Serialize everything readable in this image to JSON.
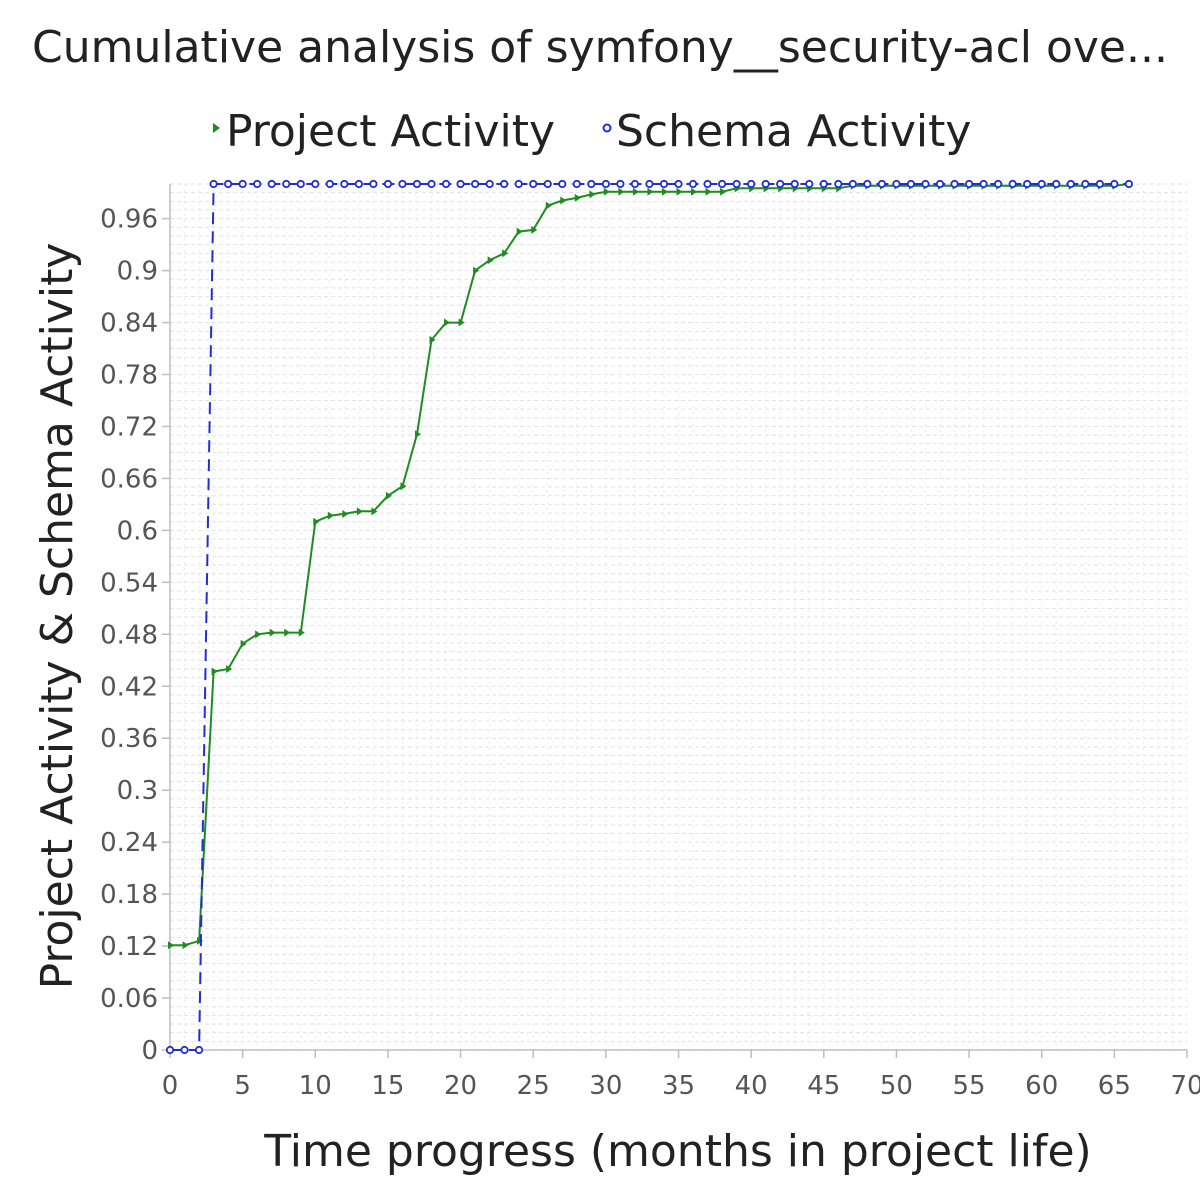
{
  "chart_data": {
    "type": "line",
    "title": "Cumulative analysis of symfony__security-acl ove...",
    "xlabel": "Time progress (months in project life)",
    "ylabel": "Project Activity & Schema Activity",
    "xlim": [
      0,
      70
    ],
    "ylim": [
      0,
      1.0
    ],
    "x_ticks": [
      "0",
      "5",
      "10",
      "15",
      "20",
      "25",
      "30",
      "35",
      "40",
      "45",
      "50",
      "55",
      "60",
      "65",
      "70"
    ],
    "y_ticks": [
      "0",
      "0.06",
      "0.12",
      "0.18",
      "0.24",
      "0.3",
      "0.36",
      "0.42",
      "0.48",
      "0.54",
      "0.6",
      "0.66",
      "0.72",
      "0.78",
      "0.84",
      "0.9",
      "0.96"
    ],
    "grid": true,
    "legend": "top",
    "series": [
      {
        "name": "Project Activity",
        "color": "#1e8c1e",
        "marker": "triangle-right",
        "line": "solid",
        "points": [
          [
            0,
            0.121
          ],
          [
            1,
            0.121
          ],
          [
            2,
            0.126
          ],
          [
            3,
            0.437
          ],
          [
            4,
            0.44
          ],
          [
            5,
            0.469
          ],
          [
            6,
            0.48
          ],
          [
            7,
            0.482
          ],
          [
            8,
            0.482
          ],
          [
            9,
            0.482
          ],
          [
            10,
            0.61
          ],
          [
            11,
            0.617
          ],
          [
            12,
            0.619
          ],
          [
            13,
            0.622
          ],
          [
            14,
            0.622
          ],
          [
            15,
            0.64
          ],
          [
            16,
            0.651
          ],
          [
            17,
            0.711
          ],
          [
            18,
            0.82
          ],
          [
            19,
            0.84
          ],
          [
            20,
            0.84
          ],
          [
            21,
            0.9
          ],
          [
            22,
            0.912
          ],
          [
            23,
            0.92
          ],
          [
            24,
            0.945
          ],
          [
            25,
            0.947
          ],
          [
            26,
            0.975
          ],
          [
            27,
            0.981
          ],
          [
            28,
            0.984
          ],
          [
            29,
            0.988
          ],
          [
            30,
            0.991
          ],
          [
            31,
            0.991
          ],
          [
            32,
            0.991
          ],
          [
            33,
            0.991
          ],
          [
            34,
            0.991
          ],
          [
            35,
            0.991
          ],
          [
            36,
            0.991
          ],
          [
            37,
            0.991
          ],
          [
            38,
            0.991
          ],
          [
            39,
            0.995
          ],
          [
            40,
            0.995
          ],
          [
            41,
            0.995
          ],
          [
            42,
            0.995
          ],
          [
            43,
            0.995
          ],
          [
            44,
            0.995
          ],
          [
            45,
            0.995
          ],
          [
            46,
            0.995
          ],
          [
            47,
            0.998
          ],
          [
            48,
            0.998
          ],
          [
            49,
            0.998
          ],
          [
            50,
            0.998
          ],
          [
            51,
            0.998
          ],
          [
            52,
            0.998
          ],
          [
            53,
            0.998
          ],
          [
            54,
            0.998
          ],
          [
            55,
            0.998
          ],
          [
            56,
            0.998
          ],
          [
            57,
            0.998
          ],
          [
            58,
            0.998
          ],
          [
            59,
            0.998
          ],
          [
            60,
            0.998
          ],
          [
            61,
            0.998
          ],
          [
            62,
            0.998
          ],
          [
            63,
            0.998
          ],
          [
            64,
            0.998
          ],
          [
            65,
            0.998
          ],
          [
            66,
            1.0
          ]
        ]
      },
      {
        "name": "Schema Activity",
        "color": "#1f2fd6",
        "marker": "circle",
        "line": "dashed",
        "points": [
          [
            0,
            0
          ],
          [
            1,
            0
          ],
          [
            2,
            0
          ],
          [
            3,
            1
          ],
          [
            4,
            1
          ],
          [
            5,
            1
          ],
          [
            6,
            1
          ],
          [
            7,
            1
          ],
          [
            8,
            1
          ],
          [
            9,
            1
          ],
          [
            10,
            1
          ],
          [
            11,
            1
          ],
          [
            12,
            1
          ],
          [
            13,
            1
          ],
          [
            14,
            1
          ],
          [
            15,
            1
          ],
          [
            16,
            1
          ],
          [
            17,
            1
          ],
          [
            18,
            1
          ],
          [
            19,
            1
          ],
          [
            20,
            1
          ],
          [
            21,
            1
          ],
          [
            22,
            1
          ],
          [
            23,
            1
          ],
          [
            24,
            1
          ],
          [
            25,
            1
          ],
          [
            26,
            1
          ],
          [
            27,
            1
          ],
          [
            28,
            1
          ],
          [
            29,
            1
          ],
          [
            30,
            1
          ],
          [
            31,
            1
          ],
          [
            32,
            1
          ],
          [
            33,
            1
          ],
          [
            34,
            1
          ],
          [
            35,
            1
          ],
          [
            36,
            1
          ],
          [
            37,
            1
          ],
          [
            38,
            1
          ],
          [
            39,
            1
          ],
          [
            40,
            1
          ],
          [
            41,
            1
          ],
          [
            42,
            1
          ],
          [
            43,
            1
          ],
          [
            44,
            1
          ],
          [
            45,
            1
          ],
          [
            46,
            1
          ],
          [
            47,
            1
          ],
          [
            48,
            1
          ],
          [
            49,
            1
          ],
          [
            50,
            1
          ],
          [
            51,
            1
          ],
          [
            52,
            1
          ],
          [
            53,
            1
          ],
          [
            54,
            1
          ],
          [
            55,
            1
          ],
          [
            56,
            1
          ],
          [
            57,
            1
          ],
          [
            58,
            1
          ],
          [
            59,
            1
          ],
          [
            60,
            1
          ],
          [
            61,
            1
          ],
          [
            62,
            1
          ],
          [
            63,
            1
          ],
          [
            64,
            1
          ],
          [
            65,
            1
          ],
          [
            66,
            1
          ]
        ]
      }
    ]
  }
}
